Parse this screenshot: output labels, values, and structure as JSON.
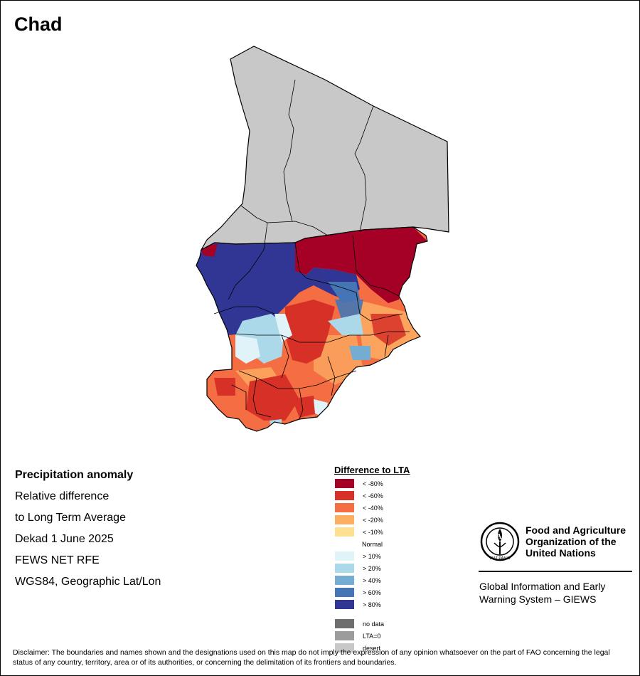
{
  "map": {
    "title": "Chad",
    "country": "Chad"
  },
  "info": {
    "heading": "Precipitation anomaly",
    "lines": [
      "Relative difference",
      "to Long Term Average",
      "Dekad 1 June 2025",
      "FEWS NET RFE",
      "WGS84, Geographic Lat/Lon"
    ]
  },
  "legend": {
    "title": "Difference to LTA",
    "items": [
      {
        "label": "< -80%",
        "color": "#a50026"
      },
      {
        "label": "< -60%",
        "color": "#d73027"
      },
      {
        "label": "< -40%",
        "color": "#f46d43"
      },
      {
        "label": "< -20%",
        "color": "#fdae61"
      },
      {
        "label": "< -10%",
        "color": "#fee090"
      },
      {
        "label": "Normal",
        "color": "#ffffff"
      },
      {
        "label": "> 10%",
        "color": "#e0f3f8"
      },
      {
        "label": "> 20%",
        "color": "#abd9e9"
      },
      {
        "label": "> 40%",
        "color": "#74add1"
      },
      {
        "label": "> 60%",
        "color": "#4575b4"
      },
      {
        "label": "> 80%",
        "color": "#313695"
      }
    ],
    "extra": [
      {
        "label": "no data",
        "color": "#6e6e6e"
      },
      {
        "label": "LTA=0",
        "color": "#9c9c9c"
      },
      {
        "label": "desert",
        "color": "#c8c8c8"
      }
    ]
  },
  "branding": {
    "org_name": "Food and Agriculture Organization of the United Nations",
    "logo_text": "FAO",
    "logo_motto": "FIAT PANIS",
    "system": "Global Information and Early Warning System – GIEWS"
  },
  "disclaimer": "Disclaimer: The boundaries and names shown and the designations used on this map do not imply the expression of any opinion whatsoever on the part of FAO concerning the legal status of any country, territory, area or of its authorities, or concerning the delimitation of its frontiers and boundaries."
}
